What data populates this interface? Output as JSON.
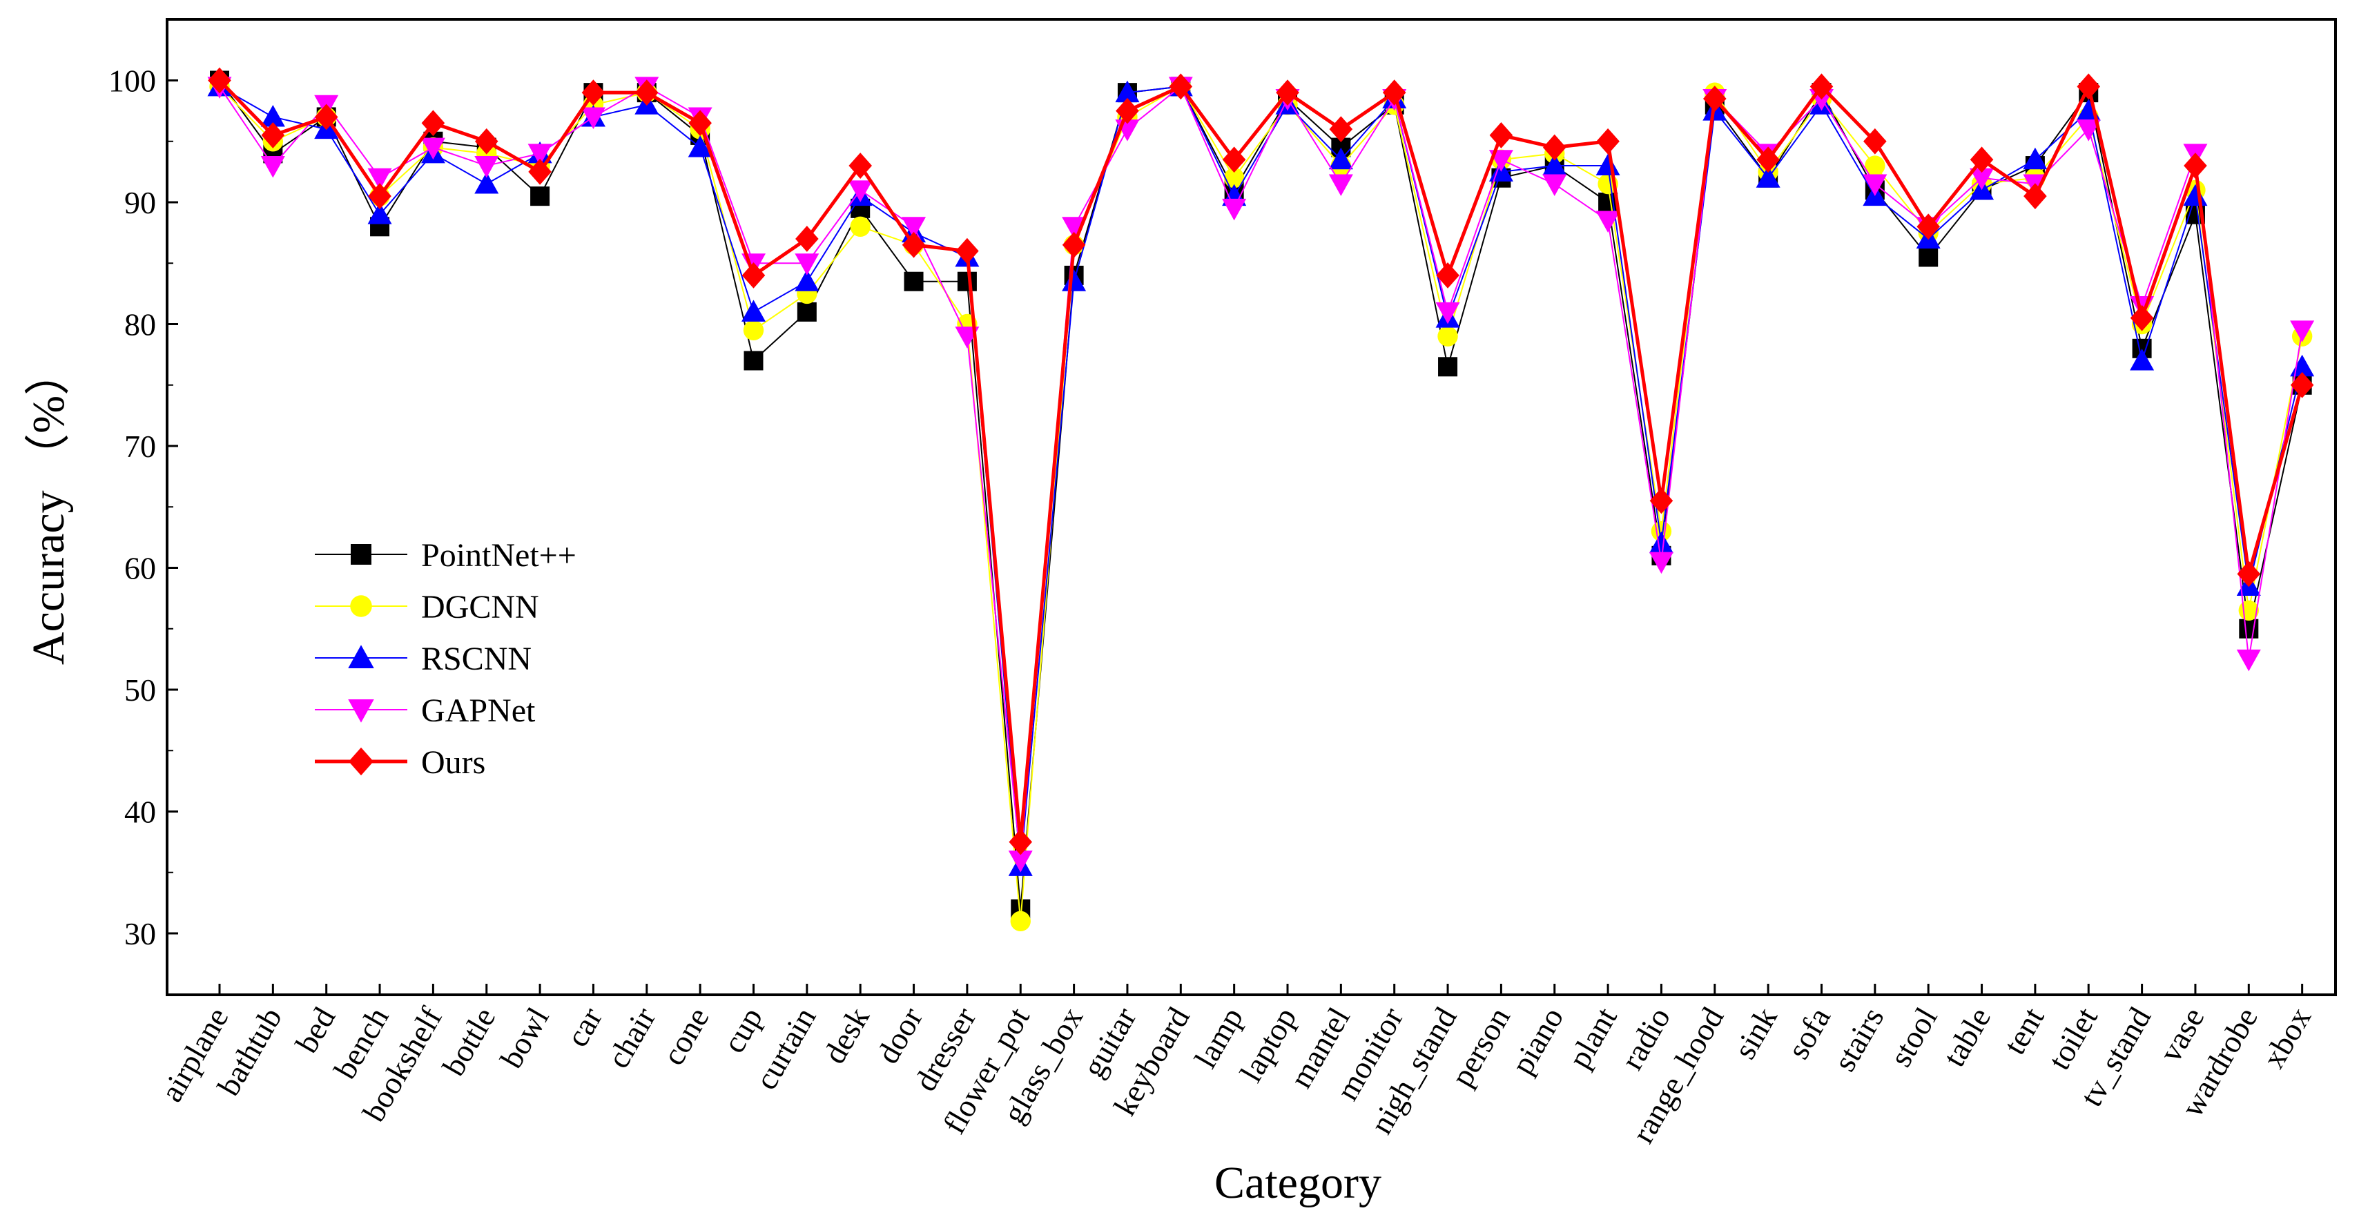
{
  "chart_data": {
    "type": "line",
    "title": "",
    "xlabel": "Category",
    "ylabel": "Accuracy （%）",
    "ylim": [
      25,
      103
    ],
    "yticks": [
      30,
      40,
      50,
      60,
      70,
      80,
      90,
      100
    ],
    "grid": false,
    "legend_position": "center-left",
    "categories": [
      "airplane",
      "bathtub",
      "bed",
      "bench",
      "bookshelf",
      "bottle",
      "bowl",
      "car",
      "chair",
      "cone",
      "cup",
      "curtain",
      "desk",
      "door",
      "dresser",
      "flower_pot",
      "glass_box",
      "guitar",
      "keyboard",
      "lamp",
      "laptop",
      "mantel",
      "monitor",
      "nigh_stand",
      "person",
      "piano",
      "plant",
      "radio",
      "range_hood",
      "sink",
      "sofa",
      "stairs",
      "stool",
      "table",
      "tent",
      "toilet",
      "tv_stand",
      "vase",
      "wardrobe",
      "xbox"
    ],
    "series": [
      {
        "name": "PointNet++",
        "color": "#000000",
        "marker": "square",
        "line_width": 2,
        "values": [
          100,
          94,
          97,
          88,
          95,
          94.5,
          90.5,
          99,
          99,
          95.5,
          77,
          81,
          89.5,
          83.5,
          83.5,
          32,
          84,
          99,
          99.5,
          91,
          98.5,
          94.5,
          98,
          76.5,
          92,
          93,
          90,
          61,
          98,
          92,
          99,
          91,
          85.5,
          91,
          93,
          99,
          78,
          89,
          55,
          75
        ]
      },
      {
        "name": "DGCNN",
        "color": "#FFFF00",
        "marker": "circle",
        "line_width": 2,
        "values": [
          99.5,
          95,
          97,
          90.5,
          94.5,
          94,
          93,
          98,
          99,
          96,
          79.5,
          82.5,
          88,
          86.5,
          80,
          31,
          86.5,
          97,
          99.5,
          92,
          98,
          93,
          98,
          79,
          93.5,
          94,
          91.5,
          63,
          99,
          92.5,
          98.5,
          93,
          87.5,
          91.5,
          92,
          97,
          80,
          91,
          56.5,
          79
        ]
      },
      {
        "name": "RSCNN",
        "color": "#0000FF",
        "marker": "triangle-up",
        "line_width": 2,
        "values": [
          99.5,
          97,
          96,
          89,
          94,
          91.5,
          94,
          97,
          98,
          94.5,
          81,
          83.5,
          90.5,
          87.5,
          85.5,
          35.5,
          83.5,
          99,
          99.5,
          90.5,
          98,
          93.5,
          98.5,
          80.5,
          92.5,
          93,
          93,
          62,
          97.5,
          92,
          98,
          90.5,
          87,
          91,
          93.5,
          97.5,
          77,
          90.5,
          58.5,
          76.5
        ]
      },
      {
        "name": "GAPNet",
        "color": "#FF00FF",
        "marker": "triangle-down",
        "line_width": 2,
        "values": [
          99.5,
          93,
          98,
          92,
          94.5,
          93,
          94,
          97,
          99.5,
          97,
          85,
          85,
          91,
          88,
          79,
          36,
          88,
          96,
          99.5,
          89.5,
          98.5,
          91.5,
          98.5,
          81,
          93.5,
          91.5,
          88.5,
          60.5,
          98.5,
          94,
          98.5,
          91.5,
          88,
          92,
          91.5,
          96,
          81.5,
          94,
          52.5,
          79.5
        ]
      },
      {
        "name": "Ours",
        "color": "#FF0000",
        "marker": "diamond",
        "line_width": 5,
        "values": [
          100,
          95.5,
          97,
          90.5,
          96.5,
          95,
          92.5,
          99,
          99,
          96.5,
          84,
          87,
          93,
          86.5,
          86,
          37.5,
          86.5,
          97.5,
          99.5,
          93.5,
          99,
          96,
          99,
          84,
          95.5,
          94.5,
          95,
          65.5,
          98.5,
          93.5,
          99.5,
          95,
          88,
          93.5,
          90.5,
          99.5,
          80.5,
          93,
          59.5,
          75
        ]
      }
    ]
  }
}
